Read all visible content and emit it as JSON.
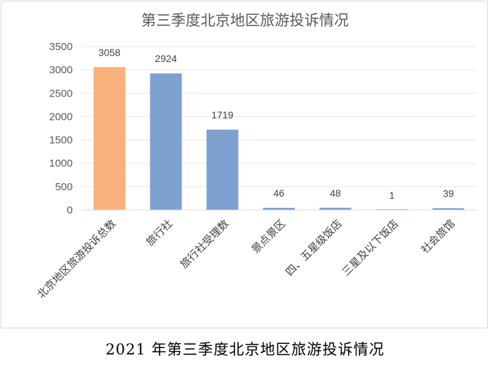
{
  "caption": "2021 年第三季度北京地区旅游投诉情况",
  "chart_data": {
    "type": "bar",
    "title": "第三季度北京地区旅游投诉情况",
    "xlabel": "",
    "ylabel": "",
    "categories": [
      "北京地区旅游投诉总数",
      "旅行社",
      "旅行社受理数",
      "景点景区",
      "四、五星级饭店",
      "三星及以下饭店",
      "社会旅馆"
    ],
    "values": [
      3058,
      2924,
      1719,
      46,
      48,
      1,
      39
    ],
    "ylim": [
      0,
      3500
    ],
    "yticks": [
      0,
      500,
      1000,
      1500,
      2000,
      2500,
      3000,
      3500
    ],
    "grid": true,
    "legend": "none",
    "colors": {
      "highlight": "#f9b07a",
      "default": "#7ea1d0",
      "grid": "#e6e6e6",
      "axis": "#d9d9d9"
    },
    "highlight_index": 0
  }
}
